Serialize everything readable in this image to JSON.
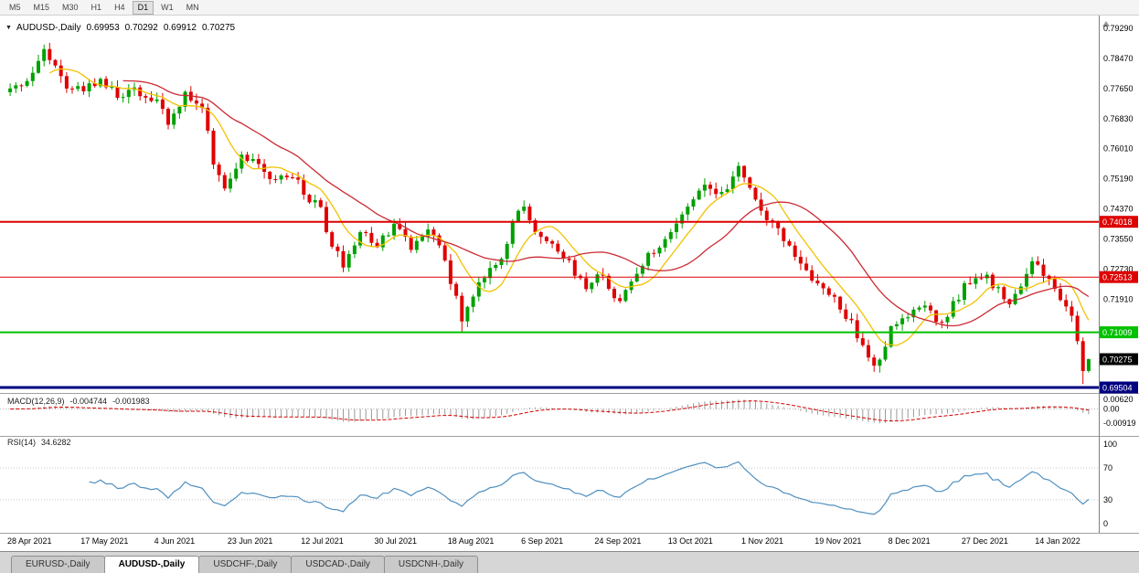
{
  "toolbar": {
    "timeframes": [
      "M5",
      "M15",
      "M30",
      "H1",
      "H4",
      "D1",
      "W1",
      "MN"
    ],
    "active_timeframe": "D1"
  },
  "chart_header": {
    "symbol": "AUDUSD-,Daily",
    "open": "0.69953",
    "high": "0.70292",
    "low": "0.69912",
    "close": "0.70275"
  },
  "indicators": {
    "macd": {
      "name": "MACD(12,26,9)",
      "value_main": "-0.004744",
      "value_signal": "-0.001983",
      "axis_labels": [
        {
          "text": "0.00620",
          "value": 0.0062
        },
        {
          "text": "0.00",
          "value": 0
        },
        {
          "text": "-0.00919",
          "value": -0.00919
        }
      ],
      "histogram_color": "#9a9a9a",
      "signal_color": "#d40000"
    },
    "rsi": {
      "name": "RSI(14)",
      "value": "34.6282",
      "axis_labels": [
        {
          "text": "100",
          "value": 100
        },
        {
          "text": "70",
          "value": 70
        },
        {
          "text": "30",
          "value": 30
        },
        {
          "text": "0",
          "value": 0
        }
      ],
      "level_lines": [
        70,
        30
      ],
      "line_color": "#4f8fbf"
    }
  },
  "tabs": {
    "items": [
      {
        "label": "EURUSD-,Daily",
        "active": false
      },
      {
        "label": "AUDUSD-,Daily",
        "active": true
      },
      {
        "label": "USDCHF-,Daily",
        "active": false
      },
      {
        "label": "USDCAD-,Daily",
        "active": false
      },
      {
        "label": "USDCNH-,Daily",
        "active": false
      }
    ]
  },
  "chart_data": {
    "type": "candlestick",
    "title": "AUDUSD-,Daily",
    "n_bars": 192,
    "x_label_step_bars": 13,
    "x_labels": [
      "28 Apr 2021",
      "17 May 2021",
      "4 Jun 2021",
      "23 Jun 2021",
      "12 Jul 2021",
      "30 Jul 2021",
      "18 Aug 2021",
      "6 Sep 2021",
      "24 Sep 2021",
      "13 Oct 2021",
      "1 Nov 2021",
      "19 Nov 2021",
      "8 Dec 2021",
      "27 Dec 2021",
      "14 Jan 2022"
    ],
    "y_ticks": [
      {
        "text": "0.79290",
        "value": 0.7929
      },
      {
        "text": "0.78470",
        "value": 0.7847
      },
      {
        "text": "0.77650",
        "value": 0.7765
      },
      {
        "text": "0.76830",
        "value": 0.7683
      },
      {
        "text": "0.76010",
        "value": 0.7601
      },
      {
        "text": "0.75190",
        "value": 0.7519
      },
      {
        "text": "0.74370",
        "value": 0.7437
      },
      {
        "text": "0.73550",
        "value": 0.7355
      },
      {
        "text": "0.72730",
        "value": 0.7273
      },
      {
        "text": "0.71910",
        "value": 0.7191
      }
    ],
    "price_path_anchors": [
      [
        0,
        0.7755
      ],
      [
        3,
        0.7795
      ],
      [
        6,
        0.786
      ],
      [
        8,
        0.784
      ],
      [
        10,
        0.776
      ],
      [
        13,
        0.777
      ],
      [
        16,
        0.7785
      ],
      [
        19,
        0.7745
      ],
      [
        22,
        0.776
      ],
      [
        26,
        0.7735
      ],
      [
        28,
        0.7665
      ],
      [
        31,
        0.7745
      ],
      [
        34,
        0.772
      ],
      [
        36,
        0.756
      ],
      [
        38,
        0.7485
      ],
      [
        41,
        0.758
      ],
      [
        44,
        0.756
      ],
      [
        47,
        0.751
      ],
      [
        50,
        0.753
      ],
      [
        52,
        0.748
      ],
      [
        55,
        0.744
      ],
      [
        57,
        0.733
      ],
      [
        59,
        0.729
      ],
      [
        62,
        0.737
      ],
      [
        65,
        0.7345
      ],
      [
        68,
        0.739
      ],
      [
        71,
        0.733
      ],
      [
        74,
        0.737
      ],
      [
        76,
        0.7345
      ],
      [
        78,
        0.724
      ],
      [
        80,
        0.7135
      ],
      [
        82,
        0.719
      ],
      [
        84,
        0.726
      ],
      [
        87,
        0.73
      ],
      [
        89,
        0.7395
      ],
      [
        91,
        0.7445
      ],
      [
        93,
        0.737
      ],
      [
        96,
        0.733
      ],
      [
        99,
        0.7285
      ],
      [
        102,
        0.723
      ],
      [
        104,
        0.7265
      ],
      [
        106,
        0.723
      ],
      [
        108,
        0.718
      ],
      [
        110,
        0.725
      ],
      [
        112,
        0.729
      ],
      [
        115,
        0.734
      ],
      [
        117,
        0.7375
      ],
      [
        119,
        0.742
      ],
      [
        121,
        0.747
      ],
      [
        123,
        0.7515
      ],
      [
        125,
        0.748
      ],
      [
        127,
        0.75
      ],
      [
        129,
        0.7545
      ],
      [
        130,
        0.752
      ],
      [
        132,
        0.7455
      ],
      [
        134,
        0.74
      ],
      [
        136,
        0.738
      ],
      [
        138,
        0.734
      ],
      [
        140,
        0.729
      ],
      [
        143,
        0.723
      ],
      [
        146,
        0.719
      ],
      [
        149,
        0.7125
      ],
      [
        151,
        0.7065
      ],
      [
        153,
        0.7005
      ],
      [
        155,
        0.706
      ],
      [
        156,
        0.711
      ],
      [
        158,
        0.713
      ],
      [
        160,
        0.717
      ],
      [
        162,
        0.718
      ],
      [
        164,
        0.712
      ],
      [
        166,
        0.715
      ],
      [
        169,
        0.7225
      ],
      [
        171,
        0.726
      ],
      [
        173,
        0.7245
      ],
      [
        175,
        0.7215
      ],
      [
        177,
        0.718
      ],
      [
        179,
        0.723
      ],
      [
        181,
        0.729
      ],
      [
        183,
        0.726
      ],
      [
        185,
        0.7215
      ],
      [
        187,
        0.718
      ],
      [
        188,
        0.714
      ],
      [
        189,
        0.7075
      ],
      [
        190,
        0.6995
      ],
      [
        191,
        0.70275
      ]
    ],
    "extreme_ticks": [
      {
        "bar": 6,
        "high": 0.7885
      },
      {
        "bar": 80,
        "low": 0.7103
      },
      {
        "bar": 153,
        "low": 0.6993
      },
      {
        "bar": 190,
        "low": 0.696
      }
    ],
    "last_candle": {
      "open": 0.69953,
      "high": 0.70292,
      "low": 0.69912,
      "close": 0.70275
    },
    "levels": [
      {
        "price": 0.74018,
        "label": "0.74018",
        "color": "#dd0000",
        "width": 2
      },
      {
        "price": 0.72513,
        "label": "0.72513",
        "color": "#dd0000",
        "width": 1
      },
      {
        "price": 0.71009,
        "label": "0.71009",
        "color": "#00c000",
        "width": 2
      },
      {
        "price": 0.69504,
        "label": "0.69504",
        "color": "#000080",
        "width": 3
      }
    ],
    "current_price": {
      "price": 0.70275,
      "label": "0.70275",
      "badge_color": "#000000"
    },
    "overlays": [
      {
        "name": "SMA fast",
        "period": 8,
        "color": "#f2c200"
      },
      {
        "name": "SMA slow",
        "period": 21,
        "color": "#cc2a33"
      }
    ],
    "candle_colors": {
      "up": "#00a000",
      "down": "#e00000"
    }
  }
}
